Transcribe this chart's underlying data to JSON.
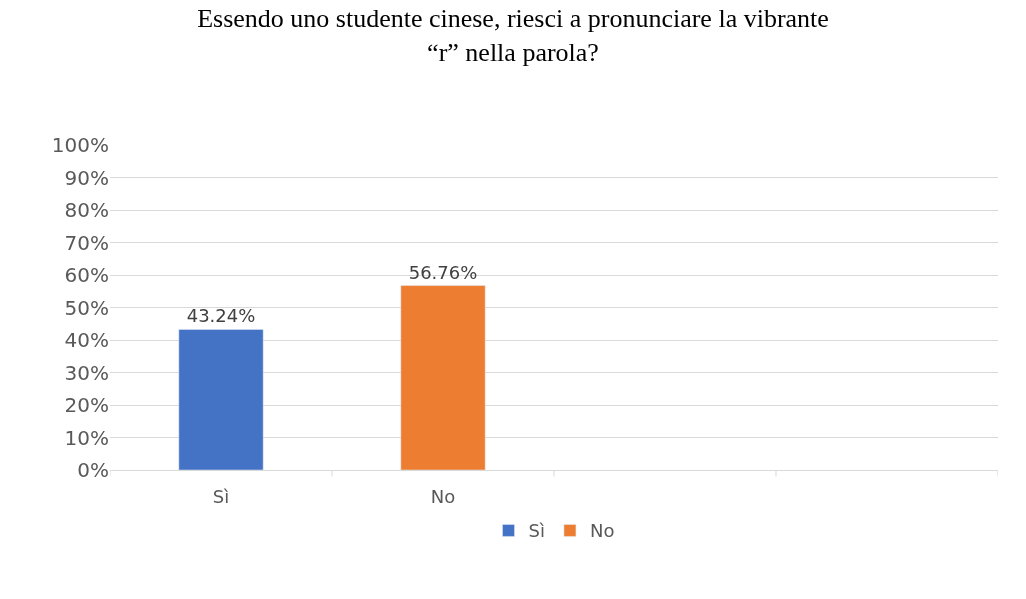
{
  "chart_data": {
    "type": "bar",
    "title": "Essendo uno studente cinese, riesci a pronunciare la vibrante\n“r” nella parola?",
    "categories": [
      "Sì",
      "No",
      null,
      null
    ],
    "series": [
      {
        "name": "Sì",
        "color": "#4472c4",
        "values": [
          43.24,
          null,
          null,
          null
        ],
        "value_labels": [
          "43.24%",
          null,
          null,
          null
        ]
      },
      {
        "name": "No",
        "color": "#ed7d31",
        "values": [
          null,
          56.76,
          null,
          null
        ],
        "value_labels": [
          null,
          "56.76%",
          null,
          null
        ]
      }
    ],
    "ylim": [
      0,
      100
    ],
    "yticks": [
      {
        "value": 0,
        "label": "0%"
      },
      {
        "value": 10,
        "label": "10%"
      },
      {
        "value": 20,
        "label": "20%"
      },
      {
        "value": 30,
        "label": "30%"
      },
      {
        "value": 40,
        "label": "40%"
      },
      {
        "value": 50,
        "label": "50%"
      },
      {
        "value": 60,
        "label": "60%"
      },
      {
        "value": 70,
        "label": "70%"
      },
      {
        "value": 80,
        "label": "80%"
      },
      {
        "value": 90,
        "label": "90%"
      },
      {
        "value": 100,
        "label": "100%"
      }
    ],
    "grid": "y",
    "legend": "bottom"
  }
}
